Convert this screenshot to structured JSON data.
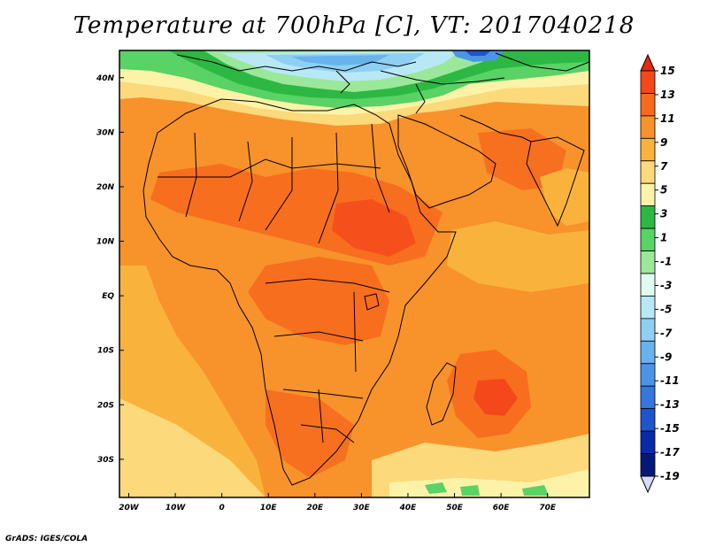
{
  "title": "Temperature at 700hPa [C], VT: 2017040218",
  "credit": "GrADS: IGES/COLA",
  "map": {
    "lat_labels": [
      "40N",
      "30N",
      "20N",
      "10N",
      "EQ",
      "10S",
      "20S",
      "30S"
    ],
    "lat_values": [
      40,
      30,
      20,
      10,
      0,
      -10,
      -20,
      -30
    ],
    "lon_labels": [
      "20W",
      "10W",
      "0",
      "10E",
      "20E",
      "30E",
      "40E",
      "50E",
      "60E",
      "70E"
    ],
    "lon_values": [
      -20,
      -10,
      0,
      10,
      20,
      30,
      40,
      50,
      60,
      70
    ],
    "lon_range": [
      -22,
      79
    ],
    "lat_range": [
      -37,
      45
    ]
  },
  "colorbar": {
    "labels": [
      "15",
      "13",
      "11",
      "9",
      "7",
      "5",
      "3",
      "1",
      "-1",
      "-3",
      "-5",
      "-7",
      "-9",
      "-11",
      "-13",
      "-15",
      "-17",
      "-19"
    ],
    "colors": [
      "#e8280f",
      "#f4481a",
      "#f66a1d",
      "#f8922b",
      "#f9b33c",
      "#fcd97a",
      "#fdf3a8",
      "#2db844",
      "#59d266",
      "#9be89a",
      "#e0fbef",
      "#b8e8f6",
      "#8ecff2",
      "#67b3ec",
      "#4a95e6",
      "#3478de",
      "#1e55cc",
      "#0a2aa8",
      "#051a78",
      "#d9d9ff"
    ]
  }
}
